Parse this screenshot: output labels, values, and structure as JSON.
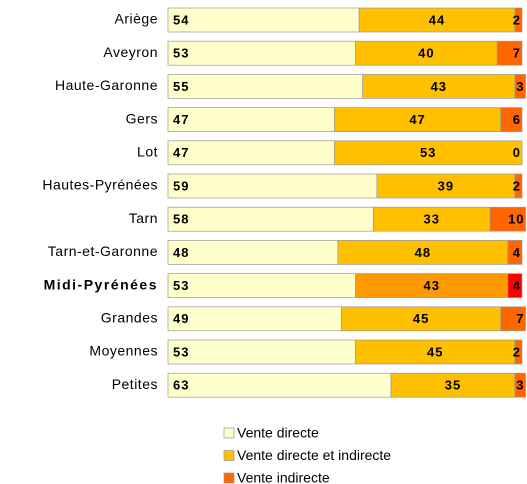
{
  "chart_data": {
    "type": "stacked_bar_horizontal",
    "categories": [
      "Ariège",
      "Aveyron",
      "Haute-Garonne",
      "Gers",
      "Lot",
      "Hautes-Pyrénées",
      "Tarn",
      "Tarn-et-Garonne",
      "Midi-Pyrénées",
      "Grandes",
      "Moyennes",
      "Petites"
    ],
    "series": [
      {
        "name": "Vente directe",
        "color": "#FFFFCC",
        "values": [
          54,
          53,
          55,
          47,
          47,
          59,
          58,
          48,
          53,
          49,
          53,
          63
        ]
      },
      {
        "name": "Vente directe et indirecte",
        "color": "#FFC000",
        "values": [
          44,
          40,
          43,
          47,
          53,
          39,
          33,
          48,
          43,
          45,
          45,
          35
        ]
      },
      {
        "name": "Vente indirecte",
        "color": "#FF6600",
        "values": [
          2,
          7,
          3,
          6,
          0,
          2,
          10,
          4,
          4,
          7,
          2,
          3
        ]
      }
    ],
    "highlight_index": 8,
    "highlight_colors": [
      "#FFFFCC",
      "#FF9900",
      "#FF0000"
    ],
    "xlim": [
      0,
      100
    ],
    "legend": "bottom"
  }
}
